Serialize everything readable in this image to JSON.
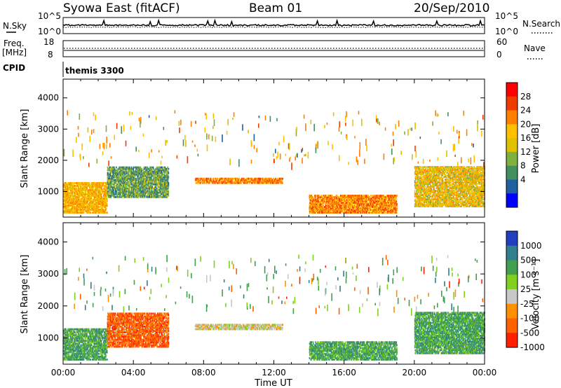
{
  "header": {
    "station": "Syowa East (fitACF)",
    "beam": "Beam 01",
    "date": "20/Sep/2010"
  },
  "noise_panel": {
    "left_label": "N.Sky",
    "right_label": "N.Search",
    "left_top": "10^5",
    "left_bottom": "10^0",
    "right_top": "10^5",
    "right_bottom": "10^0"
  },
  "freq_panel": {
    "left_label_1": "Freq.",
    "left_label_2": "[MHz]",
    "right_label": "Nave",
    "left_top": "18",
    "left_bottom": "8",
    "right_top": "60",
    "right_bottom": "0"
  },
  "cpid": {
    "label": "CPID",
    "value": "themis 3300"
  },
  "axes": {
    "ylabel": "Slant Range [km]",
    "xlabel": "Time UT",
    "y_ticks": [
      "4000",
      "3000",
      "2000",
      "1000"
    ],
    "x_ticks": [
      "00:00",
      "04:00",
      "08:00",
      "12:00",
      "16:00",
      "20:00",
      "00:00"
    ]
  },
  "power_scale": {
    "label": "Power [dB]",
    "ticks": [
      "28",
      "24",
      "20",
      "16",
      "12",
      "8",
      "4"
    ],
    "colors": [
      "#ff0000",
      "#f03b00",
      "#ff8000",
      "#ffc000",
      "#e0c000",
      "#80b040",
      "#409060",
      "#2060a0",
      "#0000ff"
    ]
  },
  "velocity_scale": {
    "label": "Velocity [m s⁻¹]",
    "ticks": [
      "1000",
      "500",
      "100",
      "25",
      "-25",
      "-100",
      "-500",
      "-1000"
    ],
    "colors": [
      "#2040c0",
      "#2f7f8f",
      "#40a050",
      "#80d020",
      "#c8c8c8",
      "#ff9000",
      "#ff6000",
      "#ff2000"
    ]
  },
  "chart_data": [
    {
      "type": "heatmap",
      "title": "Power",
      "xlabel": "Time UT",
      "ylabel": "Slant Range [km]",
      "xlim": [
        0,
        24
      ],
      "ylim": [
        180,
        4600
      ],
      "colorbar": {
        "label": "Power [dB]",
        "range": [
          0,
          32
        ]
      },
      "regions": [
        {
          "t": [
            0.0,
            2.5
          ],
          "r": [
            300,
            1300
          ],
          "level": 20
        },
        {
          "t": [
            2.5,
            6.0
          ],
          "r": [
            800,
            1800
          ],
          "level": 10
        },
        {
          "t": [
            7.5,
            12.5
          ],
          "r": [
            1250,
            1450
          ],
          "level": 24
        },
        {
          "t": [
            14.0,
            19.0
          ],
          "r": [
            300,
            900
          ],
          "level": 24
        },
        {
          "t": [
            20.0,
            24.0
          ],
          "r": [
            500,
            1800
          ],
          "level": 18
        }
      ]
    },
    {
      "type": "heatmap",
      "title": "Velocity",
      "xlabel": "Time UT",
      "ylabel": "Slant Range [km]",
      "xlim": [
        0,
        24
      ],
      "ylim": [
        180,
        4600
      ],
      "colorbar": {
        "label": "Velocity [m s-1]",
        "range": [
          -1000,
          1000
        ]
      },
      "regions": [
        {
          "t": [
            0.0,
            2.5
          ],
          "r": [
            300,
            1300
          ],
          "vel": 100
        },
        {
          "t": [
            2.5,
            6.0
          ],
          "r": [
            700,
            1800
          ],
          "vel": -500
        },
        {
          "t": [
            7.5,
            12.5
          ],
          "r": [
            1250,
            1450
          ],
          "vel": 0
        },
        {
          "t": [
            14.0,
            19.0
          ],
          "r": [
            300,
            900
          ],
          "vel": 100
        },
        {
          "t": [
            20.0,
            24.0
          ],
          "r": [
            500,
            1800
          ],
          "vel": 100
        }
      ]
    }
  ]
}
